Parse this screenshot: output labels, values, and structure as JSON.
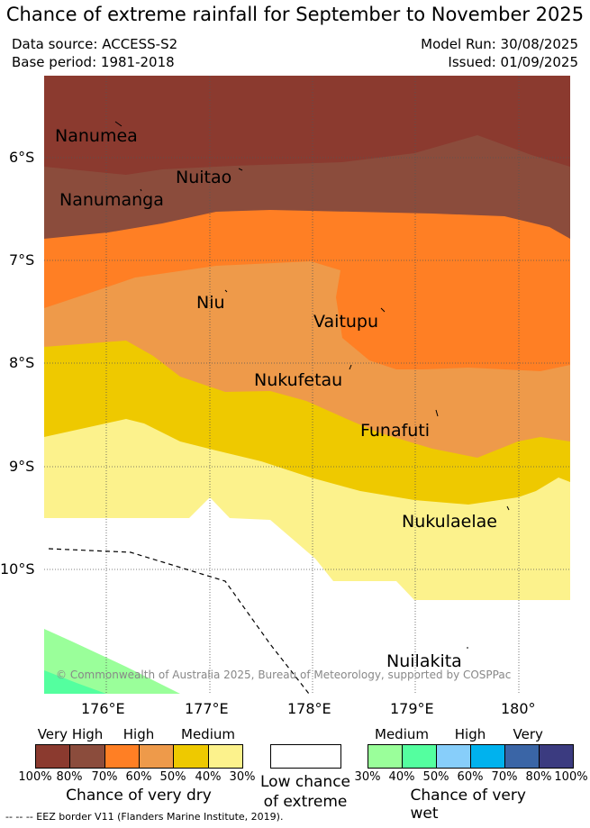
{
  "title": "Chance of extreme rainfall for September to November 2025",
  "meta": {
    "data_source": "Data source: ACCESS-S2",
    "base_period": "Base period: 1981-2018",
    "model_run": "Model Run: 30/08/2025",
    "issued": "Issued: 01/09/2025"
  },
  "map": {
    "lat_ticks": [
      "6°S",
      "7°S",
      "8°S",
      "9°S",
      "10°S"
    ],
    "lon_ticks": [
      "176°E",
      "177°E",
      "178°E",
      "179°E",
      "180°"
    ],
    "places": [
      "Nanumea",
      "Nuitao",
      "Nanumanga",
      "Niu",
      "Vaitupu",
      "Nukufetau",
      "Funafuti",
      "Nukulaelae",
      "Nuilakita"
    ],
    "copyright": "© Commonwealth of Australia 2025, Bureau of Meteorology, supported by COSPPac",
    "colors": {
      "dry_100_80": "#8b3a2f",
      "dry_80_70": "#8b4c3c",
      "dry_70_60": "#ff7f24",
      "dry_60_50": "#ee9a4a",
      "dry_50_40": "#eec900",
      "dry_40_30": "#fcf28c",
      "wet_30_40": "#9aff9a",
      "wet_40_50": "#54ff9f",
      "wet_50_60": "#87cefa",
      "wet_60_70": "#00b2ee",
      "wet_70_80": "#3a65a6",
      "wet_80_100": "#3b3b80"
    }
  },
  "legend": {
    "dry": {
      "categories": [
        "Very High",
        "High",
        "Medium"
      ],
      "percents": [
        "100%",
        "80%",
        "70%",
        "60%",
        "50%",
        "40%",
        "30%"
      ],
      "caption": "Chance of very dry"
    },
    "low": {
      "line1": "Low chance",
      "line2": "of extreme"
    },
    "wet": {
      "categories": [
        "Medium",
        "High",
        "Very High"
      ],
      "percents": [
        "30%",
        "40%",
        "50%",
        "60%",
        "70%",
        "80%",
        "100%"
      ],
      "caption": "Chance of very wet"
    }
  },
  "footer": "-- -- -- EEZ border V11 (Flanders Marine Institute, 2019)."
}
